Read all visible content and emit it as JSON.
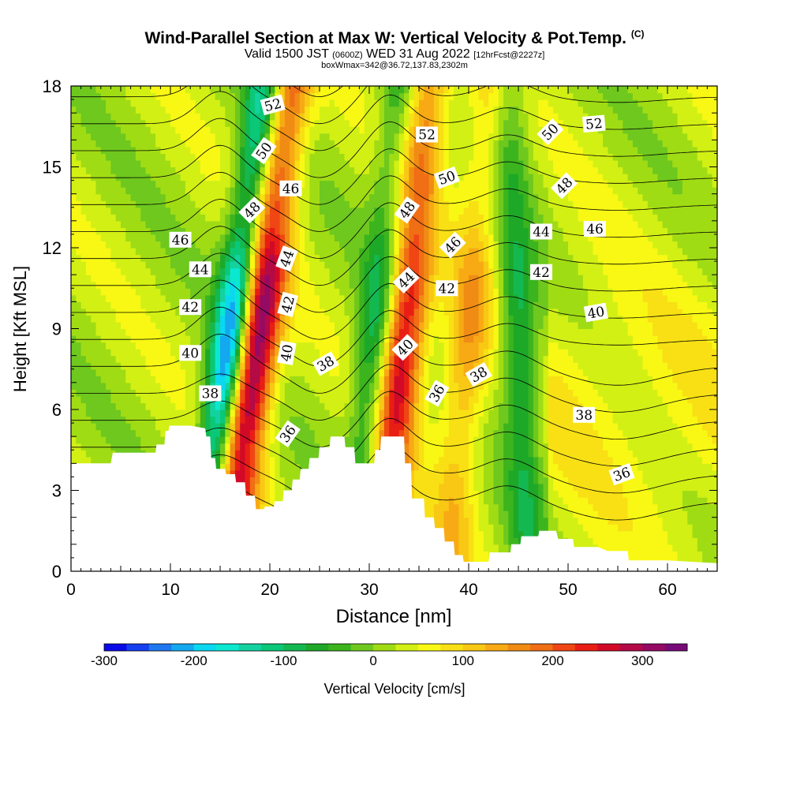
{
  "title": {
    "main": "Wind-Parallel Section at Max W: Vertical Velocity & Pot.Temp.",
    "copyright": "(C)",
    "valid_prefix": "Valid 1500 JST",
    "valid_utc": "(0600Z)",
    "valid_date": "WED 31 Aug 2022",
    "forecast": "[12hrFcst@2227z]",
    "box_info": "boxWmax=342@36.72,137.83,2302m"
  },
  "chart_data": {
    "type": "heatmap",
    "xlabel": "Distance [nm]",
    "ylabel": "Height [Kft MSL]",
    "xlim": [
      0,
      65
    ],
    "ylim": [
      0,
      18
    ],
    "x_ticks": [
      0,
      10,
      20,
      30,
      40,
      50,
      60
    ],
    "y_ticks": [
      0,
      3,
      6,
      9,
      12,
      15,
      18
    ],
    "field": "Vertical Velocity",
    "colorbar": {
      "label": "Vertical Velocity [cm/s]",
      "range": [
        -300,
        350
      ],
      "step": 25,
      "tick_labels": [
        -300,
        -200,
        -100,
        0,
        100,
        200,
        300
      ],
      "colors": [
        "#0a0ae8",
        "#1440f0",
        "#1e78f0",
        "#14a8f0",
        "#0ad8f0",
        "#0ae8d0",
        "#14d2a0",
        "#0ac878",
        "#14b850",
        "#1ea828",
        "#3cb41e",
        "#6ec81e",
        "#a0dc14",
        "#d2f014",
        "#f8f814",
        "#f8e014",
        "#f8c814",
        "#f8aa14",
        "#f08c14",
        "#f06e14",
        "#f04614",
        "#e81e14",
        "#d20a28",
        "#b40a46",
        "#960a64",
        "#780a78"
      ]
    },
    "terrain": [
      [
        0,
        4.0
      ],
      [
        4,
        4.0
      ],
      [
        4.2,
        4.4
      ],
      [
        8.5,
        4.4
      ],
      [
        8.6,
        4.7
      ],
      [
        9.4,
        4.7
      ],
      [
        9.5,
        5.2
      ],
      [
        9.8,
        5.2
      ],
      [
        9.9,
        5.4
      ],
      [
        12,
        5.4
      ],
      [
        13.5,
        5.3
      ],
      [
        13.6,
        5.0
      ],
      [
        14,
        5.0
      ],
      [
        14.1,
        4.2
      ],
      [
        14.5,
        4.2
      ],
      [
        14.6,
        3.8
      ],
      [
        15.5,
        3.8
      ],
      [
        15.6,
        3.6
      ],
      [
        16.5,
        3.6
      ],
      [
        16.6,
        3.3
      ],
      [
        17.5,
        3.3
      ],
      [
        17.6,
        2.8
      ],
      [
        18.5,
        2.8
      ],
      [
        18.6,
        2.3
      ],
      [
        19.4,
        2.3
      ],
      [
        19.5,
        2.4
      ],
      [
        20.4,
        2.4
      ],
      [
        20.5,
        2.6
      ],
      [
        21.3,
        2.6
      ],
      [
        21.4,
        3.0
      ],
      [
        22.2,
        3.0
      ],
      [
        22.3,
        3.4
      ],
      [
        23.0,
        3.4
      ],
      [
        23.1,
        3.8
      ],
      [
        23.9,
        3.8
      ],
      [
        24.0,
        4.2
      ],
      [
        24.9,
        4.2
      ],
      [
        25.0,
        4.6
      ],
      [
        26.0,
        4.6
      ],
      [
        26.1,
        5.0
      ],
      [
        27.5,
        5.0
      ],
      [
        27.6,
        4.6
      ],
      [
        28.5,
        4.6
      ],
      [
        28.6,
        4.0
      ],
      [
        30.5,
        4.0
      ],
      [
        30.6,
        4.5
      ],
      [
        31.1,
        4.5
      ],
      [
        31.2,
        5.0
      ],
      [
        33.5,
        5.0
      ],
      [
        33.6,
        4.0
      ],
      [
        34.2,
        4.0
      ],
      [
        34.3,
        2.7
      ],
      [
        35.5,
        2.7
      ],
      [
        35.6,
        2.0
      ],
      [
        36.5,
        2.0
      ],
      [
        36.6,
        1.6
      ],
      [
        37.5,
        1.6
      ],
      [
        37.6,
        1.1
      ],
      [
        38.5,
        1.1
      ],
      [
        38.6,
        0.6
      ],
      [
        39.4,
        0.6
      ],
      [
        39.5,
        0.35
      ],
      [
        42.0,
        0.35
      ],
      [
        42.1,
        0.7
      ],
      [
        44.2,
        0.7
      ],
      [
        44.3,
        1.0
      ],
      [
        45.2,
        1.0
      ],
      [
        45.3,
        1.3
      ],
      [
        47.0,
        1.3
      ],
      [
        47.1,
        1.5
      ],
      [
        48.8,
        1.5
      ],
      [
        49.0,
        1.2
      ],
      [
        50.5,
        1.2
      ],
      [
        50.6,
        0.9
      ],
      [
        53.0,
        0.9
      ],
      [
        54.0,
        0.75
      ],
      [
        56.0,
        0.75
      ],
      [
        56.1,
        0.4
      ],
      [
        60.0,
        0.4
      ],
      [
        65,
        0.3
      ]
    ],
    "updraft_bands": [
      {
        "x_bottom": 15.5,
        "x_top": 22,
        "peak": 340
      },
      {
        "x_bottom": 31,
        "x_top": 36,
        "peak": 260
      },
      {
        "x_bottom": 38,
        "x_top": 42,
        "peak": 120
      }
    ],
    "downdraft_bands": [
      {
        "x_bottom": 13,
        "x_top": 19.5,
        "peak": -300
      },
      {
        "x_bottom": 28.5,
        "x_top": 33,
        "peak": -140
      },
      {
        "x_bottom": 46,
        "x_top": 44,
        "peak": -120
      }
    ],
    "contour_labels": [
      {
        "text": "52",
        "x": 20.3,
        "y": 17.3,
        "rot": -15
      },
      {
        "text": "50",
        "x": 19.4,
        "y": 15.6,
        "rot": -55
      },
      {
        "text": "46",
        "x": 22.1,
        "y": 14.2,
        "rot": 0
      },
      {
        "text": "48",
        "x": 18.2,
        "y": 13.4,
        "rot": -45
      },
      {
        "text": "46",
        "x": 11.0,
        "y": 12.3,
        "rot": 0
      },
      {
        "text": "44",
        "x": 21.7,
        "y": 11.6,
        "rot": -70
      },
      {
        "text": "44",
        "x": 13.0,
        "y": 11.2,
        "rot": 0
      },
      {
        "text": "42",
        "x": 21.8,
        "y": 9.9,
        "rot": -75
      },
      {
        "text": "42",
        "x": 12.0,
        "y": 9.8,
        "rot": 0
      },
      {
        "text": "40",
        "x": 21.7,
        "y": 8.1,
        "rot": -80
      },
      {
        "text": "40",
        "x": 12.0,
        "y": 8.1,
        "rot": 0
      },
      {
        "text": "38",
        "x": 25.6,
        "y": 7.7,
        "rot": -30
      },
      {
        "text": "38",
        "x": 14.0,
        "y": 6.6,
        "rot": 0
      },
      {
        "text": "36",
        "x": 21.8,
        "y": 5.1,
        "rot": -55
      },
      {
        "text": "52",
        "x": 35.8,
        "y": 16.2,
        "rot": 0
      },
      {
        "text": "50",
        "x": 37.8,
        "y": 14.6,
        "rot": -20
      },
      {
        "text": "48",
        "x": 33.8,
        "y": 13.4,
        "rot": -55
      },
      {
        "text": "46",
        "x": 38.4,
        "y": 12.1,
        "rot": -45
      },
      {
        "text": "44",
        "x": 33.7,
        "y": 10.8,
        "rot": -45
      },
      {
        "text": "42",
        "x": 37.8,
        "y": 10.5,
        "rot": 0
      },
      {
        "text": "40",
        "x": 33.6,
        "y": 8.3,
        "rot": -45
      },
      {
        "text": "36",
        "x": 36.8,
        "y": 6.6,
        "rot": -60
      },
      {
        "text": "38",
        "x": 41.0,
        "y": 7.3,
        "rot": -30
      },
      {
        "text": "50",
        "x": 48.2,
        "y": 16.3,
        "rot": -45
      },
      {
        "text": "52",
        "x": 52.6,
        "y": 16.6,
        "rot": -5
      },
      {
        "text": "48",
        "x": 49.6,
        "y": 14.3,
        "rot": -45
      },
      {
        "text": "44",
        "x": 47.3,
        "y": 12.6,
        "rot": 0
      },
      {
        "text": "46",
        "x": 52.7,
        "y": 12.7,
        "rot": 0
      },
      {
        "text": "42",
        "x": 47.3,
        "y": 11.1,
        "rot": 0
      },
      {
        "text": "40",
        "x": 52.8,
        "y": 9.6,
        "rot": -10
      },
      {
        "text": "38",
        "x": 51.6,
        "y": 5.8,
        "rot": 0
      },
      {
        "text": "36",
        "x": 55.4,
        "y": 3.6,
        "rot": -20
      }
    ]
  }
}
